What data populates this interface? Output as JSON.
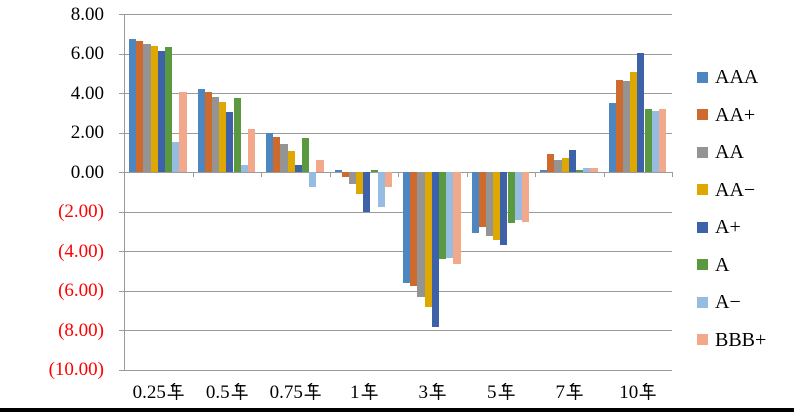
{
  "chart_data": {
    "type": "bar",
    "title": "",
    "xlabel": "",
    "ylabel": "",
    "categories": [
      "0.25年",
      "0.5年",
      "0.75年",
      "1年",
      "3年",
      "5年",
      "7年",
      "10年"
    ],
    "series": [
      {
        "name": "AAA",
        "color": "#4e86c0",
        "values": [
          6.75,
          4.2,
          1.95,
          0.1,
          -5.6,
          -3.1,
          0.1,
          3.5
        ]
      },
      {
        "name": "AA+",
        "color": "#ce6a2d",
        "values": [
          6.65,
          4.05,
          1.75,
          -0.25,
          -5.75,
          -2.8,
          0.9,
          4.65
        ]
      },
      {
        "name": "AA",
        "color": "#949494",
        "values": [
          6.5,
          3.8,
          1.4,
          -0.6,
          -6.35,
          -3.25,
          0.6,
          4.6
        ]
      },
      {
        "name": "AA−",
        "color": "#dea800",
        "values": [
          6.4,
          3.55,
          1.05,
          -1.1,
          -6.85,
          -3.45,
          0.7,
          5.05
        ]
      },
      {
        "name": "A+",
        "color": "#3d62a9",
        "values": [
          6.15,
          3.05,
          0.35,
          -2.0,
          -7.85,
          -3.7,
          1.1,
          6.05
        ]
      },
      {
        "name": "A",
        "color": "#5b9940",
        "values": [
          6.35,
          3.75,
          1.7,
          0.1,
          -4.4,
          -2.6,
          0.1,
          3.2
        ]
      },
      {
        "name": "A−",
        "color": "#97bce1",
        "values": [
          1.5,
          0.35,
          -0.75,
          -1.75,
          -4.35,
          -2.45,
          0.2,
          3.1
        ]
      },
      {
        "name": "BBB+",
        "color": "#f2a98b",
        "values": [
          4.05,
          2.2,
          0.6,
          -0.75,
          -4.65,
          -2.55,
          0.2,
          3.2
        ]
      }
    ],
    "y_axis": {
      "min": -10,
      "max": 8,
      "step": 2,
      "tick_labels": [
        "8.00",
        "6.00",
        "4.00",
        "2.00",
        "0.00",
        "(2.00)",
        "(4.00)",
        "(6.00)",
        "(8.00)",
        "(10.00)"
      ],
      "positive_label_color": "#000000",
      "negative_label_color": "#ff0000"
    },
    "legend_position": "right",
    "grid": true
  },
  "colors": {
    "gridline": "#9b9b9b",
    "axis": "#9b9b9b",
    "bottom_rule": "#000000",
    "background": "#ffffff"
  }
}
